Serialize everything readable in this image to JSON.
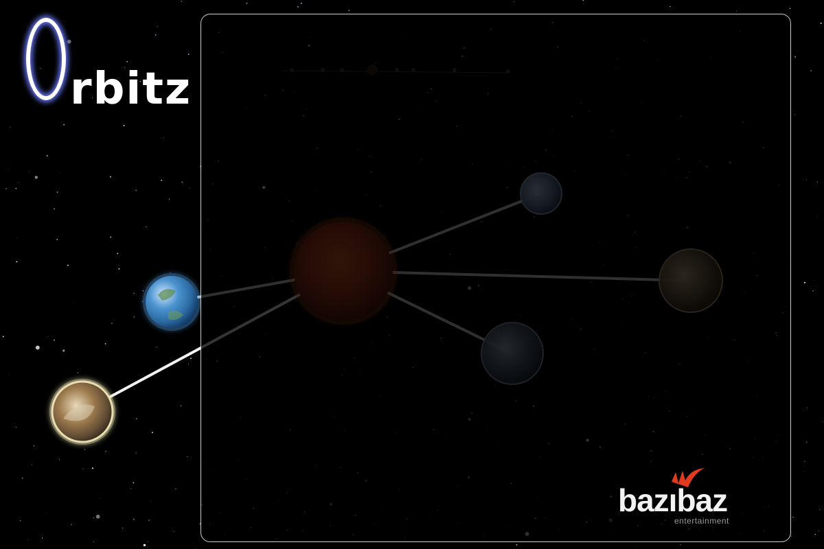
{
  "game": {
    "title": "Orbitz",
    "title_rest": "rbitz"
  },
  "brand": {
    "name": "bazıbaz",
    "subtitle": "entertainment",
    "accent_color": "#e23a1f"
  },
  "colors": {
    "background": "#000000",
    "panel_border": "#cfcfcf",
    "logo_glow": "#6a78ff",
    "connector_line": "#ffffff"
  },
  "planets": [
    {
      "id": "sun",
      "kind": "star",
      "color": "#b8431a"
    },
    {
      "id": "blue-small",
      "kind": "ice",
      "color": "#5b7fa8"
    },
    {
      "id": "gas-brown",
      "kind": "gas",
      "color": "#6c5a3e"
    },
    {
      "id": "slate-blue",
      "kind": "rock",
      "color": "#4a5c74"
    },
    {
      "id": "earth",
      "kind": "earth",
      "color": "#3f86c9"
    },
    {
      "id": "desert",
      "kind": "desert",
      "color": "#a58a5f"
    }
  ]
}
